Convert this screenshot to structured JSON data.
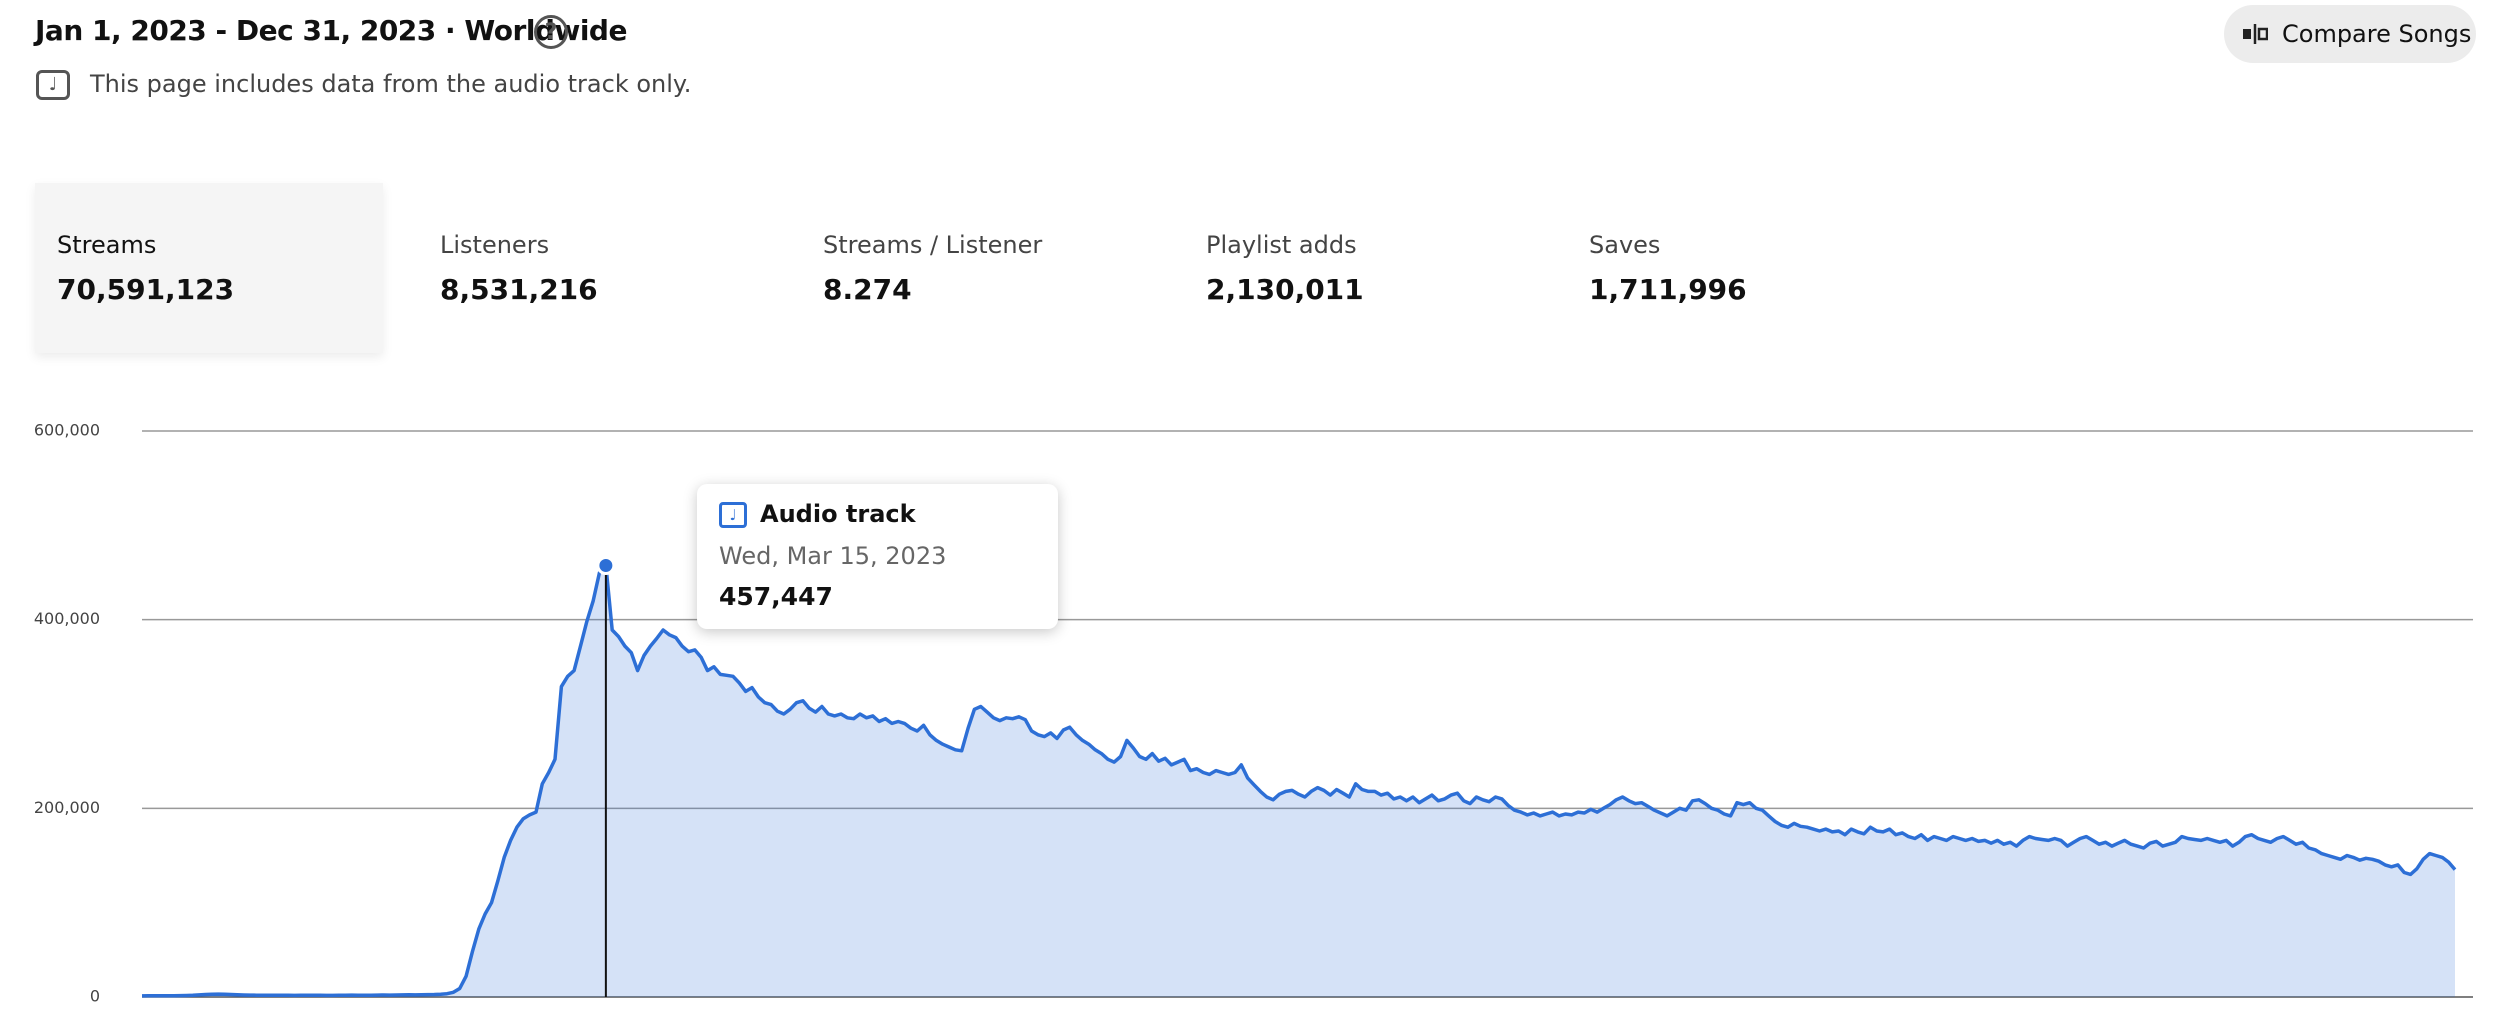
{
  "header": {
    "title": "Jan 1, 2023 - Dec 31, 2023 · Worldwide",
    "note": "This page includes data from the audio track only.",
    "compare_button": "Compare Songs"
  },
  "metrics": [
    {
      "label": "Streams",
      "value": "70,591,123"
    },
    {
      "label": "Listeners",
      "value": "8,531,216"
    },
    {
      "label": "Streams / Listener",
      "value": "8.274"
    },
    {
      "label": "Playlist adds",
      "value": "2,130,011"
    },
    {
      "label": "Saves",
      "value": "1,711,996"
    }
  ],
  "chart_data": {
    "type": "line",
    "grid": true,
    "ylim": [
      0,
      600000
    ],
    "yticks": [
      0,
      {
        "value": 200000,
        "label": "200,000"
      },
      {
        "value": 400000,
        "label": "400,000"
      },
      {
        "value": 600000,
        "label": "600,000"
      }
    ],
    "series": [
      {
        "name": "Audio track",
        "color": "#2d6fd6",
        "values": [
          1200,
          1300,
          1250,
          1400,
          1300,
          1350,
          1500,
          1600,
          1800,
          2200,
          2600,
          3000,
          3100,
          2900,
          2600,
          2300,
          2100,
          2000,
          1900,
          1900,
          1800,
          1800,
          1900,
          1800,
          1700,
          1800,
          1900,
          1800,
          1800,
          1700,
          1700,
          1800,
          1900,
          2000,
          1900,
          1800,
          1900,
          2000,
          2100,
          2000,
          2100,
          2200,
          2300,
          2200,
          2400,
          2500,
          2700,
          3000,
          3500,
          5000,
          9000,
          22000,
          48000,
          72000,
          88000,
          100000,
          123000,
          148000,
          166000,
          180000,
          189000,
          193000,
          196000,
          226000,
          238000,
          252000,
          329000,
          340000,
          346000,
          372000,
          398000,
          420000,
          450000,
          457447,
          389000,
          382000,
          372000,
          365000,
          346000,
          362000,
          372000,
          380000,
          389000,
          384000,
          381000,
          372000,
          366000,
          368000,
          360000,
          346000,
          350000,
          342000,
          341000,
          340000,
          333000,
          324000,
          328000,
          318000,
          312000,
          310000,
          303000,
          300000,
          305000,
          312000,
          314000,
          306000,
          302000,
          308000,
          300000,
          298000,
          300000,
          296000,
          295000,
          300000,
          296000,
          298000,
          292000,
          295000,
          290000,
          292000,
          290000,
          285000,
          282000,
          288000,
          278000,
          272000,
          268000,
          265000,
          262000,
          261000,
          285000,
          305000,
          308000,
          302000,
          296000,
          293000,
          296000,
          295000,
          297000,
          294000,
          282000,
          278000,
          276000,
          280000,
          274000,
          283000,
          286000,
          278000,
          272000,
          268000,
          262000,
          258000,
          252000,
          249000,
          255000,
          272000,
          264000,
          255000,
          252000,
          258000,
          250000,
          253000,
          246000,
          249000,
          252000,
          240000,
          242000,
          238000,
          236000,
          240000,
          238000,
          236000,
          238000,
          246000,
          232000,
          225000,
          218000,
          212000,
          209000,
          215000,
          218000,
          219000,
          215000,
          212000,
          218000,
          222000,
          219000,
          214000,
          220000,
          216000,
          212000,
          226000,
          220000,
          218000,
          218000,
          214000,
          216000,
          210000,
          212000,
          208000,
          212000,
          206000,
          210000,
          214000,
          208000,
          210000,
          214000,
          216000,
          208000,
          205000,
          212000,
          209000,
          207000,
          212000,
          210000,
          203000,
          198000,
          196000,
          193000,
          195000,
          192000,
          194000,
          196000,
          192000,
          194000,
          193000,
          196000,
          195000,
          199000,
          196000,
          200000,
          204000,
          209000,
          212000,
          208000,
          205000,
          206000,
          202000,
          198000,
          195000,
          192000,
          196000,
          200000,
          198000,
          208000,
          209000,
          205000,
          200000,
          198000,
          194000,
          192000,
          206000,
          204000,
          206000,
          200000,
          198000,
          192000,
          186000,
          182000,
          180000,
          184000,
          181000,
          180000,
          178000,
          176000,
          178000,
          175000,
          176000,
          172000,
          178000,
          175000,
          173000,
          180000,
          176000,
          175000,
          178000,
          172000,
          174000,
          170000,
          168000,
          172000,
          166000,
          170000,
          168000,
          166000,
          170000,
          168000,
          166000,
          168000,
          165000,
          166000,
          163000,
          166000,
          162000,
          164000,
          160000,
          166000,
          170000,
          168000,
          167000,
          166000,
          168000,
          166000,
          160000,
          164000,
          168000,
          170000,
          166000,
          162000,
          164000,
          160000,
          163000,
          166000,
          162000,
          160000,
          158000,
          163000,
          165000,
          160000,
          162000,
          164000,
          170000,
          168000,
          167000,
          166000,
          168000,
          166000,
          164000,
          166000,
          160000,
          164000,
          170000,
          172000,
          168000,
          166000,
          164000,
          168000,
          170000,
          166000,
          162000,
          164000,
          158000,
          156000,
          152000,
          150000,
          148000,
          146000,
          150000,
          148000,
          145000,
          147000,
          146000,
          144000,
          140000,
          138000,
          140000,
          132000,
          130000,
          136000,
          146000,
          152000,
          150000,
          148000,
          143000,
          135000
        ]
      }
    ],
    "tooltip": {
      "index": 73,
      "date": "Wed, Mar 15, 2023",
      "value_label": "457,447"
    }
  }
}
